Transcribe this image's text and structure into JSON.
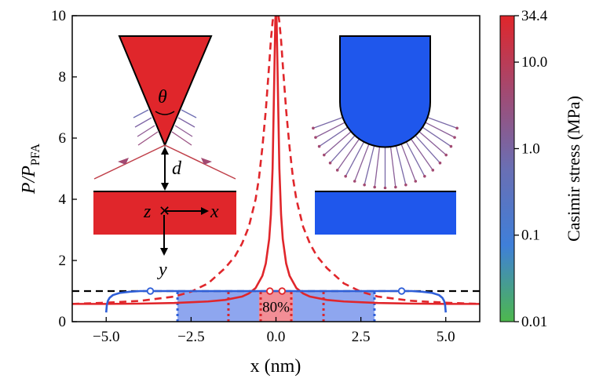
{
  "chart_data": {
    "type": "line",
    "xlabel": "x (nm)",
    "ylabel": "P/P_PFA",
    "ylabel_main": "P/P",
    "ylabel_sub": "PFA",
    "xlim": [
      -6,
      6
    ],
    "ylim": [
      0,
      10
    ],
    "xticks": [
      -5,
      -2.5,
      0,
      2.5,
      5
    ],
    "xtick_labels": [
      "−5.0",
      "−2.5",
      "0.0",
      "2.5",
      "5.0"
    ],
    "yticks": [
      0,
      2,
      4,
      6,
      8,
      10
    ],
    "ytick_labels": [
      "0",
      "2",
      "4",
      "6",
      "8",
      "10"
    ],
    "reference_line": {
      "y": 1.0,
      "style": "dashed",
      "color": "#000000"
    },
    "series": [
      {
        "name": "cone (solid)",
        "color": "#e0262b",
        "style": "solid",
        "x": [
          -6.0,
          -5.0,
          -4.0,
          -3.0,
          -2.0,
          -1.5,
          -1.0,
          -0.8,
          -0.6,
          -0.4,
          -0.3,
          -0.2,
          -0.15,
          -0.1,
          -0.05,
          -0.02,
          0.0,
          0.02,
          0.05,
          0.1,
          0.15,
          0.2,
          0.3,
          0.4,
          0.6,
          0.8,
          1.0,
          1.5,
          2.0,
          3.0,
          4.0,
          5.0,
          6.0
        ],
        "y": [
          0.58,
          0.58,
          0.59,
          0.61,
          0.66,
          0.71,
          0.82,
          0.92,
          1.1,
          1.5,
          1.9,
          2.7,
          3.5,
          5.0,
          8.0,
          9.8,
          10.3,
          9.8,
          8.0,
          5.0,
          3.5,
          2.7,
          1.9,
          1.5,
          1.1,
          0.92,
          0.82,
          0.71,
          0.66,
          0.61,
          0.59,
          0.58,
          0.58
        ]
      },
      {
        "name": "cone (dashed)",
        "color": "#e0262b",
        "style": "dashed",
        "x": [
          -6.0,
          -5.0,
          -4.0,
          -3.0,
          -2.5,
          -2.0,
          -1.5,
          -1.2,
          -1.0,
          -0.8,
          -0.6,
          -0.5,
          -0.4,
          -0.3,
          -0.2,
          -0.15,
          -0.1,
          -0.05,
          0.0,
          0.05,
          0.1,
          0.15,
          0.2,
          0.3,
          0.4,
          0.5,
          0.6,
          0.8,
          1.0,
          1.2,
          1.5,
          2.0,
          2.5,
          3.0,
          4.0,
          5.0,
          6.0
        ],
        "y": [
          0.58,
          0.62,
          0.68,
          0.82,
          0.98,
          1.25,
          1.75,
          2.15,
          2.55,
          3.1,
          4.0,
          4.7,
          5.7,
          6.9,
          8.4,
          9.2,
          9.8,
          10.2,
          10.4,
          10.2,
          9.8,
          9.2,
          8.4,
          6.9,
          5.7,
          4.7,
          4.0,
          3.1,
          2.55,
          2.15,
          1.75,
          1.25,
          0.98,
          0.82,
          0.68,
          0.62,
          0.58
        ]
      },
      {
        "name": "sphere (solid)",
        "color": "#2f5fd8",
        "style": "solid",
        "x": [
          -5.0,
          -4.98,
          -4.95,
          -4.9,
          -4.8,
          -4.6,
          -4.3,
          -4.0,
          -3.7,
          -3.0,
          -2.0,
          -1.0,
          0.0,
          1.0,
          2.0,
          3.0,
          3.7,
          4.0,
          4.3,
          4.6,
          4.8,
          4.9,
          4.95,
          4.98,
          5.0
        ],
        "y": [
          0.3,
          0.55,
          0.68,
          0.78,
          0.87,
          0.94,
          0.98,
          1.0,
          1.0,
          1.0,
          1.0,
          1.0,
          1.0,
          1.0,
          1.0,
          1.0,
          1.0,
          1.0,
          0.98,
          0.94,
          0.87,
          0.78,
          0.68,
          0.55,
          0.3
        ]
      }
    ],
    "shaded_regions": [
      {
        "name": "sphere-region",
        "x_range": [
          -2.9,
          2.9
        ],
        "y_range": [
          0,
          1.0
        ],
        "color": "#8ea6ef"
      },
      {
        "name": "cone-region",
        "x_range": [
          -0.5,
          0.5
        ],
        "y_range": [
          0,
          1.0
        ],
        "color": "#f28e96"
      }
    ],
    "vertical_markers": [
      {
        "x": -2.9,
        "color": "#2f5fd8",
        "style": "dotted"
      },
      {
        "x": 2.9,
        "color": "#2f5fd8",
        "style": "dotted"
      },
      {
        "x": -1.4,
        "color": "#d8262d",
        "style": "dotted"
      },
      {
        "x": 1.4,
        "color": "#d8262d",
        "style": "dotted"
      },
      {
        "x": -0.45,
        "color": "#d8262d",
        "style": "dotted"
      },
      {
        "x": 0.45,
        "color": "#d8262d",
        "style": "dotted"
      }
    ],
    "open_markers": [
      {
        "x": -3.7,
        "y": 1.0,
        "color": "#2f5fd8"
      },
      {
        "x": 3.7,
        "y": 1.0,
        "color": "#2f5fd8"
      },
      {
        "x": -0.18,
        "y": 1.0,
        "color": "#e0262b"
      },
      {
        "x": 0.18,
        "y": 1.0,
        "color": "#e0262b"
      }
    ],
    "annotations": [
      {
        "text": "80%",
        "x": 0.0,
        "y": 0.4
      }
    ],
    "colorbar": {
      "label": "Casimir stress (MPa)",
      "scale": "log",
      "range": [
        0.01,
        34.4
      ],
      "ticks": [
        34.4,
        10.0,
        1.0,
        0.1,
        0.01
      ],
      "tick_labels": [
        "34.4",
        "10.0",
        "1.0",
        "0.1",
        "0.01"
      ],
      "colors": [
        "#4db84d",
        "#3f7fd9",
        "#6a6fb4",
        "#a24a72",
        "#e0262b"
      ]
    },
    "insets": {
      "left": {
        "shape": "cone above plate",
        "color": "#e0262b",
        "labels": {
          "angle": "θ",
          "gap": "d",
          "z_axis": "z",
          "x_axis": "x",
          "y_axis": "y"
        }
      },
      "right": {
        "shape": "hemisphere above plate",
        "color": "#1f57ec"
      }
    }
  }
}
